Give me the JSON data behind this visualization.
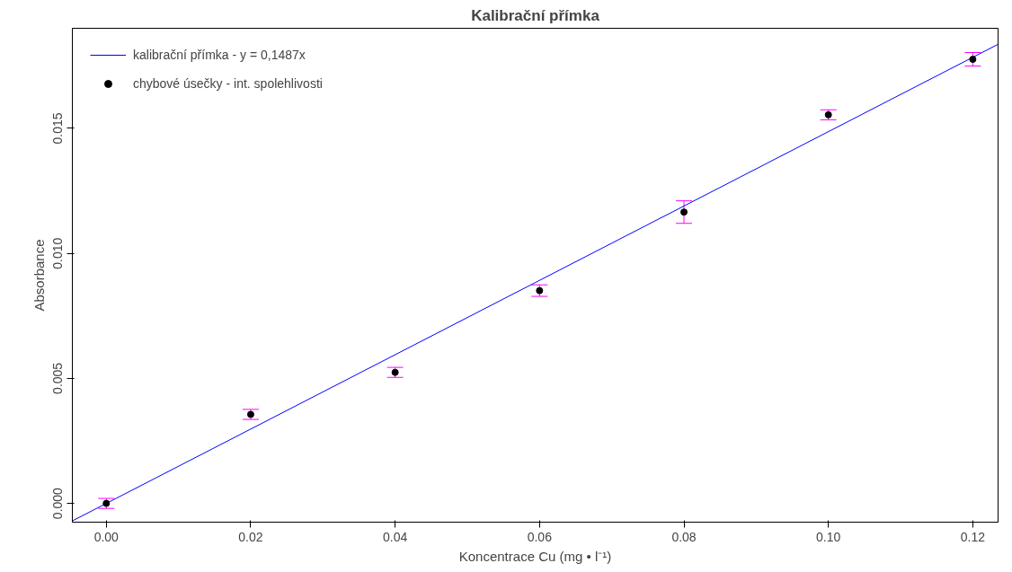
{
  "chart_data": {
    "type": "scatter",
    "title": "Kalibrační přímka",
    "xlabel": "Koncentrace Cu (mg • l⁻¹)",
    "ylabel": "Absorbance",
    "x": [
      0.0,
      0.02,
      0.04,
      0.06,
      0.08,
      0.1,
      0.12
    ],
    "series": [
      {
        "type": "line",
        "name": "kalibrační přímka - y = 0,1487x",
        "color": "#0000ff",
        "marker": "none",
        "x": [
          -0.0047,
          0.1235
        ],
        "values": [
          -0.0007,
          0.01836
        ]
      },
      {
        "name": "chybové úsečky - int. spolehlivosti",
        "color": "#000000",
        "values": [
          0.0,
          0.00356,
          0.00524,
          0.00851,
          0.01165,
          0.01554,
          0.01776
        ],
        "errors": [
          0.0002,
          0.0002,
          0.0002,
          0.00023,
          0.00045,
          0.0002,
          0.00027
        ]
      }
    ],
    "xlim": [
      -0.0047,
      0.1235
    ],
    "ylim": [
      -0.00075,
      0.019
    ],
    "xticks": [
      {
        "value": 0,
        "label": "0.00"
      },
      0.02,
      0.04,
      0.06,
      0.08,
      {
        "value": 0.1,
        "label": "0.10"
      },
      0.12
    ],
    "yticks": [
      {
        "value": 0,
        "label": "0.000"
      },
      0.005,
      {
        "value": 0.01,
        "label": "0.010"
      },
      0.015
    ],
    "grid": false,
    "legend": "top left",
    "marker": "circle"
  }
}
